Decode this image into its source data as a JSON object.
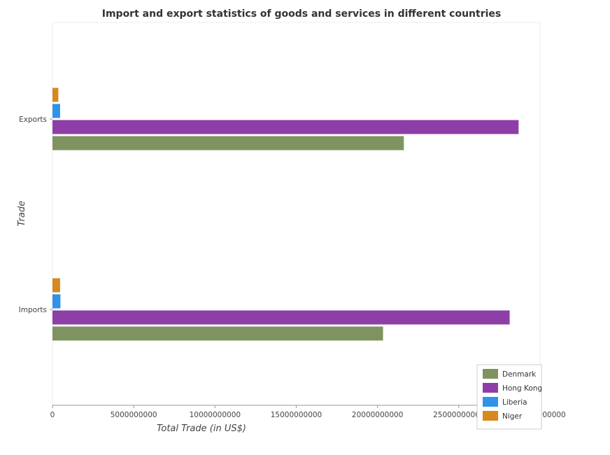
{
  "chart_data": {
    "type": "bar",
    "orientation": "horizontal",
    "title": "Import and export statistics of goods and services in different countries",
    "xlabel": "Total Trade (in US$)",
    "ylabel": "Trade",
    "categories": [
      "Exports",
      "Imports"
    ],
    "x_ticks": [
      "0",
      "5000000000",
      "10000000000",
      "15000000000",
      "20000000000",
      "25000000000",
      "30000000000"
    ],
    "xlim": [
      0,
      30000000000
    ],
    "grid": false,
    "legend_position": "bottom-right",
    "series": [
      {
        "name": "Denmark",
        "color": "#7f9360",
        "values": [
          21620000000,
          20340000000
        ]
      },
      {
        "name": "Hong Kong",
        "color": "#8e3fa7",
        "values": [
          28680000000,
          28130000000
        ]
      },
      {
        "name": "Liberia",
        "color": "#2f93e8",
        "values": [
          470000000,
          490000000
        ]
      },
      {
        "name": "Niger",
        "color": "#d6891f",
        "values": [
          360000000,
          470000000
        ]
      }
    ]
  }
}
